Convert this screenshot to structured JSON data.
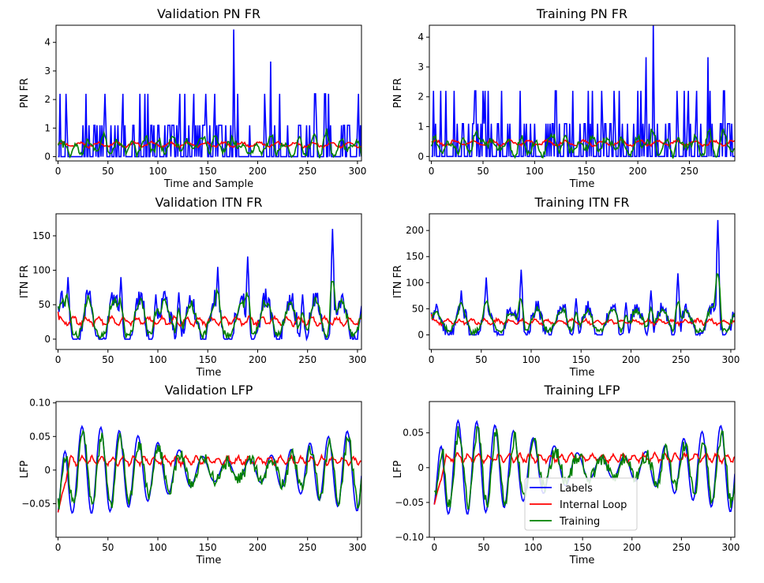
{
  "colors": {
    "labels": "#0000ff",
    "internal_loop": "#ff0000",
    "training": "#008000"
  },
  "legend": {
    "placement": "lower center of Training LFP panel",
    "entries": [
      "Labels",
      "Internal Loop",
      "Training"
    ]
  },
  "chart_data": [
    {
      "type": "line",
      "title": "Validation PN FR",
      "xlabel": "Time and Sample",
      "ylabel": "PN FR",
      "xlim": [
        -2,
        304
      ],
      "ylim": [
        -0.15,
        4.6
      ],
      "xticks": [
        0,
        50,
        100,
        150,
        200,
        250,
        300
      ],
      "yticks": [
        0,
        1,
        2,
        3,
        4
      ],
      "gen": {
        "kind": "pn",
        "n": 304,
        "noise": 0.55,
        "levels": [
          0,
          1.1,
          2.2
        ],
        "spikes": [
          [
            176,
            4.45
          ],
          [
            213,
            3.33
          ],
          [
            2,
            2.2
          ],
          [
            28,
            2.2
          ],
          [
            47,
            2.2
          ],
          [
            65,
            2.2
          ],
          [
            90,
            2.2
          ],
          [
            136,
            2.2
          ],
          [
            157,
            2.2
          ]
        ],
        "predmean": 0.42,
        "predamp": 0.08,
        "trainamp": 0.22
      }
    },
    {
      "type": "line",
      "title": "Training PN FR",
      "xlabel": "Time",
      "ylabel": "PN FR",
      "xlim": [
        -2,
        294
      ],
      "ylim": [
        -0.15,
        4.4
      ],
      "xticks": [
        0,
        50,
        100,
        150,
        200,
        250
      ],
      "yticks": [
        0,
        1,
        2,
        3,
        4
      ],
      "gen": {
        "kind": "pn",
        "n": 294,
        "noise": 0.6,
        "levels": [
          0,
          1.1,
          2.2
        ],
        "spikes": [
          [
            215,
            4.45
          ],
          [
            208,
            3.33
          ],
          [
            268,
            3.33
          ],
          [
            9,
            2.2
          ],
          [
            14,
            2.2
          ],
          [
            55,
            2.2
          ],
          [
            86,
            2.2
          ],
          [
            120,
            2.2
          ],
          [
            137,
            2.2
          ],
          [
            200,
            2.2
          ],
          [
            283,
            2.2
          ]
        ],
        "predmean": 0.45,
        "predamp": 0.08,
        "trainamp": 0.22
      }
    },
    {
      "type": "line",
      "title": "Validation ITN FR",
      "xlabel": "Time",
      "ylabel": "ITN FR",
      "xlim": [
        -2,
        304
      ],
      "ylim": [
        -15,
        182
      ],
      "xticks": [
        0,
        50,
        100,
        150,
        200,
        250,
        300
      ],
      "yticks": [
        0,
        50,
        100,
        150
      ],
      "gen": {
        "kind": "itn",
        "n": 304,
        "base": 25,
        "amp": 35,
        "peaks": [
          [
            10,
            90
          ],
          [
            63,
            90
          ],
          [
            160,
            105
          ],
          [
            190,
            120
          ],
          [
            275,
            160
          ],
          [
            121,
            68
          ],
          [
            245,
            65
          ],
          [
            98,
            65
          ]
        ],
        "predmean": 26,
        "predamp": 5
      }
    },
    {
      "type": "line",
      "title": "Training ITN FR",
      "xlabel": "Time",
      "ylabel": "ITN FR",
      "xlim": [
        -2,
        304
      ],
      "ylim": [
        -28,
        232
      ],
      "xticks": [
        0,
        50,
        100,
        150,
        200,
        250,
        300
      ],
      "yticks": [
        0,
        50,
        100,
        150,
        200
      ],
      "gen": {
        "kind": "itn",
        "n": 304,
        "base": 22,
        "amp": 30,
        "peaks": [
          [
            287,
            220
          ],
          [
            90,
            125
          ],
          [
            55,
            110
          ],
          [
            247,
            118
          ],
          [
            220,
            85
          ],
          [
            30,
            85
          ],
          [
            145,
            70
          ],
          [
            195,
            62
          ]
        ],
        "predmean": 25,
        "predamp": 4
      }
    },
    {
      "type": "line",
      "title": "Validation LFP",
      "xlabel": "Time",
      "ylabel": "LFP",
      "xlim": [
        -2,
        304
      ],
      "ylim": [
        -0.1,
        0.102
      ],
      "xticks": [
        0,
        50,
        100,
        150,
        200,
        250,
        300
      ],
      "yticks": [
        -0.05,
        0.0,
        0.05,
        0.1
      ],
      "gen": {
        "kind": "lfp",
        "n": 304,
        "amp": 0.05,
        "start": -0.063,
        "predmean": 0.014,
        "predamp": 0.005
      }
    },
    {
      "type": "line",
      "title": "Training LFP",
      "xlabel": "Time",
      "ylabel": "LFP",
      "xlim": [
        -5,
        304
      ],
      "ylim": [
        -0.1,
        0.095
      ],
      "xticks": [
        0,
        50,
        100,
        150,
        200,
        250,
        300
      ],
      "yticks": [
        -0.1,
        -0.05,
        0.0,
        0.05
      ],
      "gen": {
        "kind": "lfp",
        "n": 304,
        "amp": 0.052,
        "start": -0.053,
        "predmean": 0.014,
        "predamp": 0.005
      }
    }
  ]
}
